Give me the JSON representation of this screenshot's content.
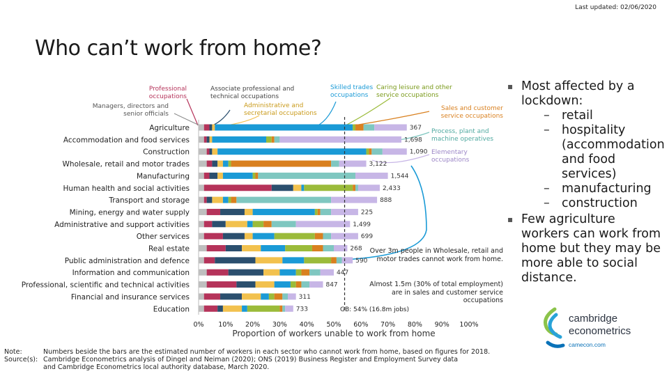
{
  "last_updated": "Last updated: 02/06/2020",
  "title": "Who can’t work from home?",
  "legend": {
    "professional": "Professional occupations",
    "managers": "Managers, directors and senior officials",
    "associate": "Associate professional and technical occupations",
    "admin": "Administrative and secretarial occupations",
    "skilled": "Skilled trades occupations",
    "caring": "Caring leisure and other service occupations",
    "sales": "Sales and customer service occupations",
    "process": "Process, plant and machine operatives",
    "elementary": "Elementary occupations"
  },
  "bullets": {
    "b1": "Most affected by a lockdown:",
    "sub": [
      "retail",
      "hospitality (accommodation and food services)",
      "manufacturing",
      "construction"
    ],
    "b2": "Few agriculture workers can work from home but they may be more able to social distance."
  },
  "annotations": {
    "gb": "GB: 54% (16.8m jobs)",
    "wholesale_note": "Over 3m people in Wholesale, retail and motor trades cannot work from home.",
    "sales_note": "Almost 1.5m (30% of total employment) are in sales and customer service occupations"
  },
  "footnotes": {
    "note_label": "Note:",
    "note_text": "Numbers beside the bars are the estimated number of workers in each sector who cannot work from home, based on figures for 2018.",
    "source_label": "Source(s):",
    "source_text1": "Cambridge Econometrics analysis of Dingel and Neiman (2020); ONS (2019) Business Register and Employment Survey data",
    "source_text2": "and Cambridge Econometrics local authority database, March 2020."
  },
  "logo": {
    "line1": "cambridge",
    "line2": "econometrics",
    "url": "camecon.com"
  },
  "colors": {
    "managers": "#bfbfbf",
    "professional": "#b5335a",
    "associate": "#2b4f6e",
    "admin": "#f2c14e",
    "skilled": "#1a9ad6",
    "caring": "#9bbb3a",
    "sales": "#d9801f",
    "process": "#7fc7c0",
    "elementary": "#c7b6e6"
  },
  "chart_data": {
    "type": "bar",
    "orientation": "horizontal",
    "stacked": true,
    "xlabel": "Proportion of workers unable to work from home",
    "xlim": [
      0,
      100
    ],
    "xticks": [
      "0%",
      "10%",
      "20%",
      "30%",
      "40%",
      "50%",
      "60%",
      "70%",
      "80%",
      "90%",
      "100%"
    ],
    "reference_line": {
      "value": 54,
      "label": "GB: 54% (16.8m jobs)"
    },
    "series_order": [
      "managers",
      "professional",
      "associate",
      "admin",
      "skilled",
      "caring",
      "sales",
      "process",
      "elementary"
    ],
    "categories": [
      "Agriculture",
      "Accommodation and food services",
      "Construction",
      "Wholesale, retail and motor trades",
      "Manufacturing",
      "Human health and social activities",
      "Transport and storage",
      "Mining, energy and water supply",
      "Administrative and support activities",
      "Other services",
      "Real estate",
      "Public administration and defence",
      "Information and communication",
      "Professional, scientific and technical activities",
      "Financial and insurance services",
      "Education"
    ],
    "value_labels": [
      "367",
      "1,698",
      "1,090",
      "3,122",
      "1,544",
      "2,433",
      "888",
      "225",
      "1,499",
      "699",
      "268",
      "590",
      "447",
      "847",
      "311",
      "733"
    ],
    "segments": [
      [
        2,
        2,
        1,
        1,
        51,
        1,
        3,
        4,
        12
      ],
      [
        2,
        1,
        1,
        1,
        20,
        2,
        1,
        2,
        45
      ],
      [
        3,
        1,
        1,
        2,
        55,
        1,
        1,
        4,
        9
      ],
      [
        3,
        2,
        2,
        2,
        2,
        1,
        37,
        3,
        10
      ],
      [
        2,
        2,
        3,
        2,
        11,
        1,
        1,
        36,
        12
      ],
      [
        2,
        25,
        8,
        3,
        1,
        18,
        1,
        1,
        8
      ],
      [
        2,
        1,
        2,
        4,
        2,
        1,
        2,
        35,
        17
      ],
      [
        3,
        5,
        9,
        3,
        23,
        1,
        1,
        4,
        10
      ],
      [
        2,
        3,
        5,
        8,
        2,
        4,
        3,
        9,
        20
      ],
      [
        2,
        7,
        8,
        3,
        8,
        15,
        3,
        3,
        10
      ],
      [
        3,
        7,
        6,
        7,
        9,
        10,
        4,
        4,
        5
      ],
      [
        2,
        4,
        15,
        10,
        8,
        10,
        2,
        2,
        4
      ],
      [
        3,
        8,
        13,
        6,
        6,
        2,
        3,
        4,
        5
      ],
      [
        3,
        11,
        7,
        7,
        6,
        2,
        2,
        3,
        5
      ],
      [
        2,
        6,
        8,
        7,
        3,
        2,
        3,
        2,
        3
      ],
      [
        2,
        5,
        2,
        7,
        2,
        12,
        1,
        1,
        3
      ]
    ]
  }
}
